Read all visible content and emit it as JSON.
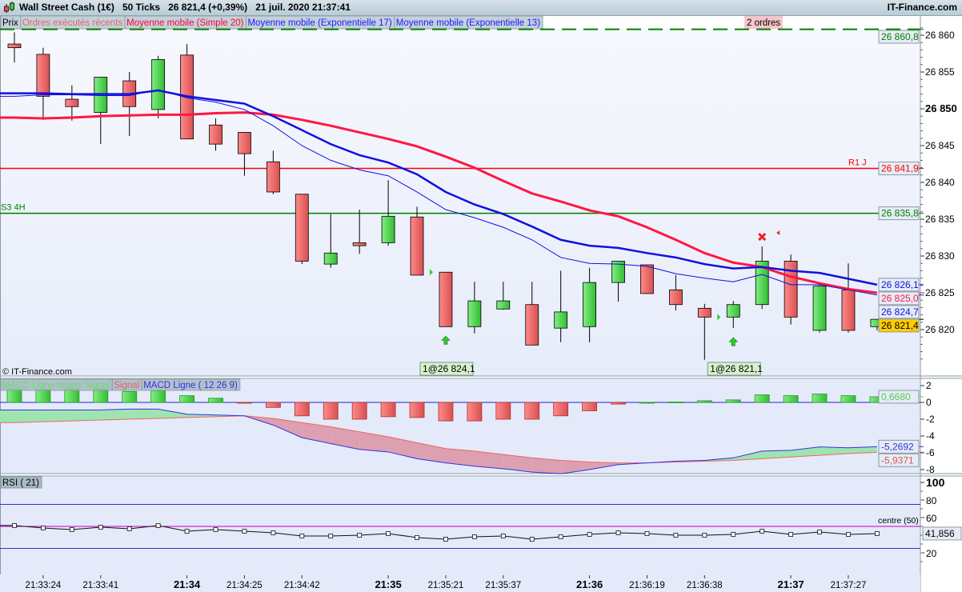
{
  "header": {
    "instrument": "Wall Street Cash (1€)",
    "ticks": "50 Ticks",
    "price": "26 821,4 (+0,39%)",
    "datetime": "21 juil. 2020 21:37:41",
    "brand": "IT-Finance.com"
  },
  "legend": [
    {
      "label": "Prix",
      "color": "#000000"
    },
    {
      "label": "Ordres exécutés récents",
      "color": "#e06666"
    },
    {
      "label": "Moyenne mobile (Simple 20)",
      "color": "#ff0033"
    },
    {
      "label": "Moyenne mobile (Exponentielle 17)",
      "color": "#1a1aff"
    },
    {
      "label": "Moyenne mobile (Exponentielle 13)",
      "color": "#1a1aff"
    }
  ],
  "orders_badge": "2 ordres",
  "copyright": "© IT-Finance.com",
  "colors": {
    "up": "#44cc44",
    "down": "#e06060",
    "sma": "#ff1744",
    "ema": "#1010e0",
    "green_line": "#008000",
    "red_line": "#ff0000",
    "last_price_bg": "#ffcc00"
  },
  "chart_data": [
    {
      "type": "candlestick",
      "title": "Wall Street Cash (1€)",
      "ylim": [
        26815,
        26862
      ],
      "yticks": [
        26820,
        26825,
        26830,
        26835,
        26840,
        26845,
        26850,
        26855,
        26860
      ],
      "ytick_labels": [
        "26 820",
        "26 825",
        "26 830",
        "26 835",
        "26 840",
        "26 845",
        "26 850",
        "26 855",
        "26 860"
      ],
      "x_labels": [
        {
          "index": 1,
          "label": "21:33:24",
          "bold": false
        },
        {
          "index": 3,
          "label": "21:33:41",
          "bold": false
        },
        {
          "index": 6,
          "label": "21:34",
          "bold": true
        },
        {
          "index": 8,
          "label": "21:34:25",
          "bold": false
        },
        {
          "index": 10,
          "label": "21:34:42",
          "bold": false
        },
        {
          "index": 13,
          "label": "21:35",
          "bold": true
        },
        {
          "index": 15,
          "label": "21:35:21",
          "bold": false
        },
        {
          "index": 17,
          "label": "21:35:37",
          "bold": false
        },
        {
          "index": 20,
          "label": "21:36",
          "bold": true
        },
        {
          "index": 22,
          "label": "21:36:19",
          "bold": false
        },
        {
          "index": 24,
          "label": "21:36:38",
          "bold": false
        },
        {
          "index": 27,
          "label": "21:37",
          "bold": true
        },
        {
          "index": 29,
          "label": "21:37:27",
          "bold": false
        }
      ],
      "ohlc": [
        [
          26858.8,
          26860.4,
          26856.3,
          26858.3
        ],
        [
          26857.4,
          26858.3,
          26848.5,
          26851.7
        ],
        [
          26851.3,
          26853.2,
          26848.4,
          26850.3
        ],
        [
          26849.5,
          26854.3,
          26845.2,
          26854.3
        ],
        [
          26853.8,
          26855.0,
          26846.3,
          26850.3
        ],
        [
          26849.9,
          26857.2,
          26848.7,
          26856.7
        ],
        [
          26857.3,
          26858.8,
          26845.9,
          26845.9
        ],
        [
          26847.8,
          26848.7,
          26844.3,
          26845.2
        ],
        [
          26846.8,
          26846.8,
          26840.9,
          26843.9
        ],
        [
          26842.8,
          26844.3,
          26838.4,
          26838.7
        ],
        [
          26838.4,
          26838.4,
          26828.9,
          26829.3
        ],
        [
          26828.9,
          26835.7,
          26828.4,
          26830.4
        ],
        [
          26831.8,
          26836.3,
          26830.3,
          26831.4
        ],
        [
          26831.8,
          26840.3,
          26831.4,
          26835.4
        ],
        [
          26835.3,
          26836.7,
          26827.4,
          26827.4
        ],
        [
          26827.8,
          26827.8,
          26820.4,
          26820.4
        ],
        [
          26820.4,
          26826.5,
          26819.5,
          26823.9
        ],
        [
          26822.8,
          26826.5,
          26822.7,
          26823.9
        ],
        [
          26823.4,
          26826.5,
          26817.9,
          26817.9
        ],
        [
          26820.2,
          26828.0,
          26818.3,
          26822.4
        ],
        [
          26820.4,
          26828.4,
          26818.3,
          26826.4
        ],
        [
          26826.4,
          26829.3,
          26823.8,
          26829.3
        ],
        [
          26828.8,
          26828.8,
          26824.9,
          26824.9
        ],
        [
          26825.4,
          26827.4,
          26822.6,
          26823.4
        ],
        [
          26822.9,
          26823.5,
          26815.9,
          26821.7
        ],
        [
          26821.7,
          26823.9,
          26820.2,
          26823.4
        ],
        [
          26823.4,
          26831.3,
          26822.8,
          26829.3
        ],
        [
          26829.3,
          26830.2,
          26820.7,
          26821.7
        ],
        [
          26819.9,
          26826.1,
          26819.6,
          26825.9
        ],
        [
          26825.4,
          26829.0,
          26819.6,
          26819.9
        ],
        [
          26820.4,
          26821.4,
          26819.9,
          26821.4
        ]
      ],
      "series": [
        {
          "name": "Moyenne mobile (Simple 20)",
          "values": [
            26848.8,
            26848.7,
            26848.8,
            26849.0,
            26849.1,
            26849.2,
            26849.2,
            26849.4,
            26849.5,
            26849.2,
            26848.5,
            26847.7,
            26846.8,
            26845.9,
            26844.9,
            26843.5,
            26842.0,
            26840.2,
            26838.5,
            26837.4,
            26836.2,
            26835.4,
            26833.9,
            26832.2,
            26830.4,
            26829.1,
            26828.5,
            26827.2,
            26826.3,
            26825.5,
            26825.0
          ],
          "last_label": "26 825,0"
        },
        {
          "name": "Moyenne mobile (Exponentielle 17)",
          "values": [
            26852.1,
            26852.1,
            26852.0,
            26852.0,
            26852.0,
            26852.5,
            26851.7,
            26851.2,
            26850.7,
            26849.0,
            26847.1,
            26845.2,
            26843.7,
            26842.7,
            26841.1,
            26838.7,
            26837.0,
            26835.7,
            26834.0,
            26832.2,
            26831.4,
            26831.1,
            26830.4,
            26829.8,
            26828.9,
            26828.3,
            26828.5,
            26828.0,
            26827.7,
            26826.9,
            26826.1
          ],
          "last_label": "26 826,1"
        },
        {
          "name": "Moyenne mobile (Exponentielle 13)",
          "values": [
            26851.7,
            26851.9,
            26851.9,
            26851.8,
            26851.8,
            26852.6,
            26851.5,
            26850.9,
            26849.9,
            26847.7,
            26845.0,
            26843.0,
            26841.7,
            26840.9,
            26838.7,
            26836.3,
            26835.2,
            26833.9,
            26832.2,
            26829.8,
            26829.0,
            26828.9,
            26828.6,
            26827.6,
            26827.0,
            26826.5,
            26827.5,
            26826.1,
            26826.1,
            26825.4,
            26824.7
          ],
          "last_label": "26 824,7"
        }
      ],
      "hlines": [
        {
          "value": 26860.8,
          "label": "26 860,8",
          "name": "",
          "color": "#008000",
          "dashed": true
        },
        {
          "value": 26841.9,
          "label": "26 841,9",
          "name": "R1 J",
          "color": "#ff0000",
          "dashed": false
        },
        {
          "value": 26835.8,
          "label": "26 835,8",
          "name": "S3 4H",
          "color": "#008000",
          "dashed": false
        }
      ],
      "last_price": {
        "value": 26821.4,
        "label": "26 821,4"
      },
      "orders": [
        {
          "index": 15,
          "label": "1@26 824,1",
          "side": "buy"
        },
        {
          "index": 25,
          "label": "1@26 821,1",
          "side": "buy"
        }
      ],
      "exit_marker_index": 26
    },
    {
      "type": "macd",
      "legend": [
        "MACD Ligne moins Signal",
        "Signal",
        "MACD Ligne ( 12 26 9)"
      ],
      "ylim": [
        -9,
        2.5
      ],
      "yticks": [
        2,
        0,
        -2,
        -4,
        -6,
        -8
      ],
      "histogram": [
        1.6,
        1.6,
        1.6,
        1.6,
        1.3,
        1.4,
        0.8,
        0.5,
        -0.1,
        -0.6,
        -1.6,
        -2.0,
        -2.0,
        -1.7,
        -1.8,
        -2.2,
        -2.2,
        -2.0,
        -2.0,
        -1.6,
        -1.0,
        -0.2,
        0.0,
        0.05,
        0.2,
        0.3,
        0.9,
        0.8,
        1.0,
        0.8,
        0.668
      ],
      "macd": [
        -0.9,
        -0.9,
        -0.9,
        -0.9,
        -0.8,
        -0.8,
        -1.4,
        -1.5,
        -1.6,
        -2.7,
        -4.2,
        -4.9,
        -5.6,
        -5.9,
        -6.7,
        -7.2,
        -7.6,
        -7.9,
        -8.3,
        -8.5,
        -8.0,
        -7.4,
        -7.2,
        -7.0,
        -6.9,
        -6.6,
        -5.8,
        -5.7,
        -5.3,
        -5.4,
        -5.2692
      ],
      "signal": [
        -2.4,
        -2.3,
        -2.2,
        -2.1,
        -2.0,
        -1.9,
        -1.8,
        -1.7,
        -1.6,
        -1.9,
        -2.4,
        -2.9,
        -3.5,
        -4.1,
        -4.8,
        -5.5,
        -5.8,
        -6.2,
        -6.6,
        -6.9,
        -7.1,
        -7.2,
        -7.2,
        -7.1,
        -7.0,
        -6.9,
        -6.7,
        -6.5,
        -6.3,
        -6.1,
        -5.9371
      ],
      "last_labels": {
        "histogram": "0,6680",
        "macd": "-5,2692",
        "signal": "-5,9371"
      }
    },
    {
      "type": "rsi",
      "legend": "RSI ( 21)",
      "ylim": [
        0,
        100
      ],
      "yticks": [
        100,
        80,
        60,
        20
      ],
      "levels": [
        75,
        50,
        25
      ],
      "centre_label": "centre (50)",
      "values": [
        51,
        48.2,
        46.4,
        49.1,
        47.3,
        51,
        44.5,
        46.4,
        44.5,
        42.7,
        39.1,
        39.1,
        40,
        41.8,
        37.3,
        35.5,
        38.2,
        39.1,
        35.5,
        38.2,
        40.9,
        42.7,
        41.8,
        40,
        40,
        40.9,
        44.5,
        40.9,
        43.6,
        40.9,
        41.856
      ],
      "last_label": "41,856"
    }
  ]
}
